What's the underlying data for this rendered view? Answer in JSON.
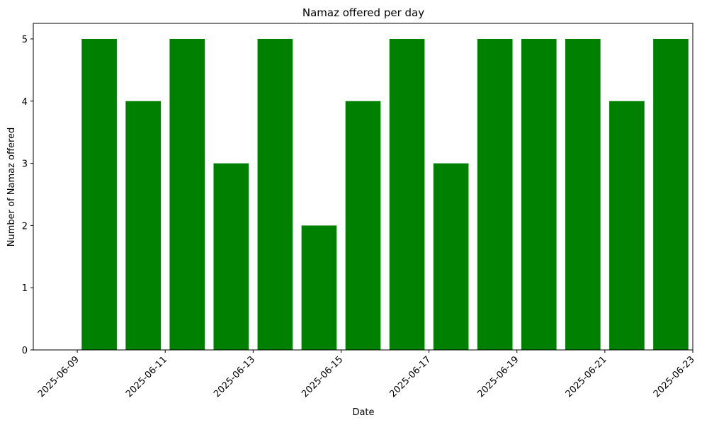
{
  "chart_data": {
    "type": "bar",
    "title": "Namaz offered per day",
    "xlabel": "Date",
    "ylabel": "Number of Namaz offered",
    "x": [
      "2025-06-09",
      "2025-06-10",
      "2025-06-11",
      "2025-06-12",
      "2025-06-13",
      "2025-06-14",
      "2025-06-15",
      "2025-06-16",
      "2025-06-17",
      "2025-06-18",
      "2025-06-19",
      "2025-06-20",
      "2025-06-21",
      "2025-06-22"
    ],
    "values": [
      5,
      4,
      5,
      3,
      5,
      2,
      4,
      5,
      3,
      5,
      5,
      5,
      4,
      5
    ],
    "xlim": [
      "2025-06-08",
      "2025-06-23"
    ],
    "ylim": [
      0,
      5.25
    ],
    "xticks": [
      "2025-06-09",
      "2025-06-11",
      "2025-06-13",
      "2025-06-15",
      "2025-06-17",
      "2025-06-19",
      "2025-06-21",
      "2025-06-23"
    ],
    "yticks": [
      0,
      1,
      2,
      3,
      4,
      5
    ],
    "bar_color": "#008000",
    "grid": false,
    "legend": "none"
  }
}
